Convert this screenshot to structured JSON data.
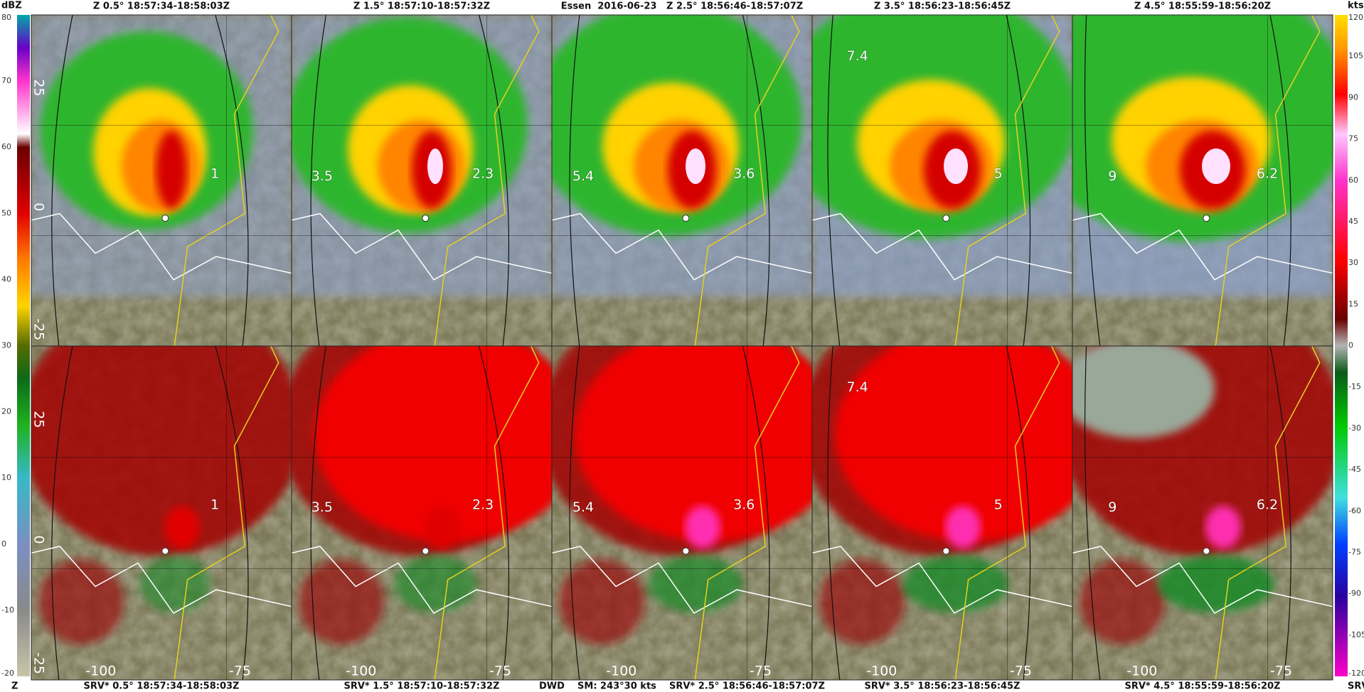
{
  "colorbars": {
    "left": {
      "unit": "dBZ",
      "footer": "Z",
      "range": [
        -20,
        80
      ],
      "ticks": [
        80,
        70,
        60,
        50,
        40,
        30,
        20,
        10,
        0,
        -10,
        -20
      ]
    },
    "right": {
      "unit": "kts",
      "footer": "SRV",
      "range": [
        -120,
        120
      ],
      "ticks": [
        120,
        105,
        90,
        75,
        60,
        45,
        30,
        15,
        0,
        -15,
        -30,
        -45,
        -60,
        -75,
        -90,
        -105,
        -120
      ]
    }
  },
  "y_axis_labels": [
    "25",
    "0",
    "-25"
  ],
  "x_axis_labels": [
    "-100",
    "-75"
  ],
  "panels": [
    {
      "top_title": "Z 0.5° 18:57:34-18:58:03Z",
      "bottom_title": "SRV* 0.5° 18:57:34-18:58:03Z",
      "labels": [
        "1"
      ]
    },
    {
      "top_title": "Z 1.5° 18:57:10-18:57:32Z",
      "bottom_title": "SRV* 1.5° 18:57:10-18:57:32Z",
      "labels": [
        "3.5",
        "2.3"
      ]
    },
    {
      "top_title": "Essen  2016-06-23   Z 2.5° 18:56:46-18:57:07Z",
      "bottom_title": "DWD    SM: 243°30 kts    SRV* 2.5° 18:56:46-18:57:07Z",
      "labels": [
        "5.4",
        "3.6"
      ]
    },
    {
      "top_title": "Z 3.5° 18:56:23-18:56:45Z",
      "bottom_title": "SRV* 3.5° 18:56:23-18:56:45Z",
      "labels": [
        "7.4",
        "5"
      ]
    },
    {
      "top_title": "Z 4.5° 18:55:59-18:56:20Z",
      "bottom_title": "SRV* 4.5° 18:55:59-18:56:20Z",
      "labels": [
        "9",
        "6.2"
      ]
    }
  ]
}
